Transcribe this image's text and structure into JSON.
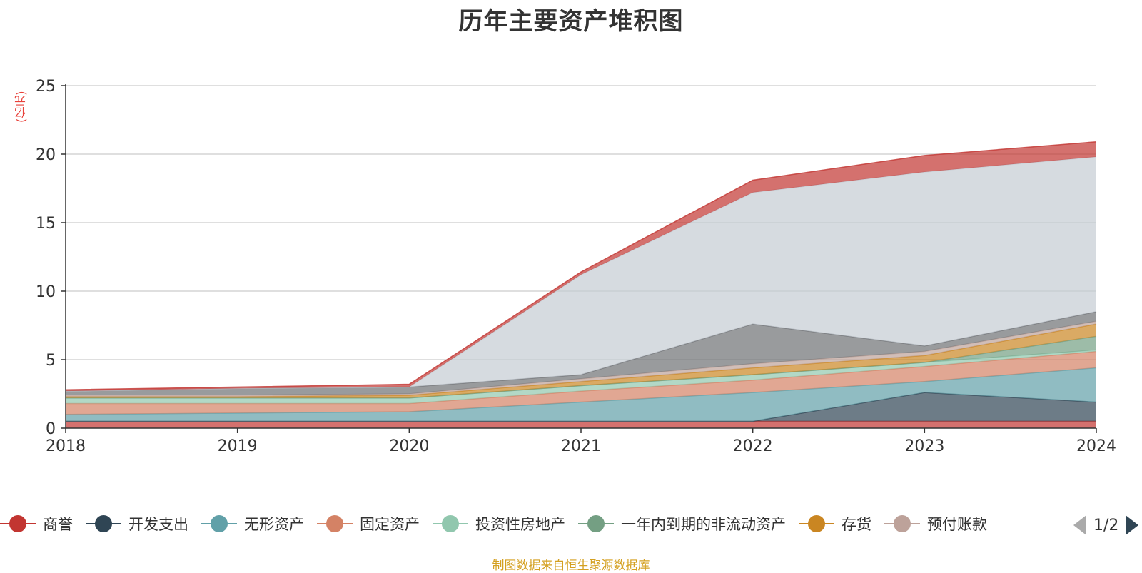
{
  "title": "历年主要资产堆积图",
  "source": "制图数据来自恒生聚源数据库",
  "pager": {
    "text": "1/2",
    "prev_icon": "triangle-left-icon",
    "next_icon": "triangle-right-icon"
  },
  "chart_data": {
    "type": "area",
    "stacked": true,
    "title": "历年主要资产堆积图",
    "unit_label": "(亿元)",
    "x": [
      "2018",
      "2019",
      "2020",
      "2021",
      "2022",
      "2023",
      "2024"
    ],
    "y_ticks": [
      "0",
      "5",
      "10",
      "15",
      "20",
      "25"
    ],
    "ylim": [
      0,
      25
    ],
    "grid": true,
    "legend_position": "bottom",
    "series": [
      {
        "name": "商誉",
        "color": "#c23531",
        "legend_color": "#c23531",
        "values": [
          0.5,
          0.5,
          0.5,
          0.5,
          0.5,
          0.5,
          0.5
        ]
      },
      {
        "name": "开发支出",
        "color": "#2f4554",
        "legend_color": "#2f4554",
        "values": [
          0,
          0,
          0,
          0,
          0,
          2.1,
          1.4
        ]
      },
      {
        "name": "无形资产",
        "color": "#61a0a8",
        "legend_color": "#61a0a8",
        "values": [
          0.5,
          0.6,
          0.7,
          1.4,
          2.1,
          0.8,
          2.5
        ]
      },
      {
        "name": "固定资产",
        "color": "#d48265",
        "legend_color": "#d48265",
        "values": [
          0.8,
          0.7,
          0.6,
          0.8,
          0.9,
          1.1,
          1.2
        ]
      },
      {
        "name": "投资性房地产",
        "color": "#91c7ae",
        "legend_color": "#91c7ae",
        "values": [
          0.4,
          0.4,
          0.4,
          0.4,
          0.4,
          0.3,
          0.1
        ]
      },
      {
        "name": "一年内到期的非流动资产",
        "color": "#749f83",
        "legend_color": "#749f83",
        "values": [
          0,
          0,
          0,
          0,
          0,
          0,
          1.0
        ]
      },
      {
        "name": "存货",
        "color": "#ca8622",
        "legend_color": "#ca8622",
        "values": [
          0.1,
          0.1,
          0.2,
          0.3,
          0.5,
          0.5,
          0.9
        ]
      },
      {
        "name": "预付账款",
        "color": "#bda29a",
        "legend_color": "#bda29a",
        "values": [
          0.1,
          0.1,
          0.1,
          0.2,
          0.3,
          0.3,
          0.2
        ]
      },
      {
        "name": "",
        "color": "#6e7074",
        "values": [
          0.3,
          0.5,
          0.5,
          0.3,
          2.9,
          0.4,
          0.7
        ]
      },
      {
        "name": "",
        "color": "#c4ccd3",
        "values": [
          0,
          0,
          0,
          7.3,
          9.6,
          12.7,
          11.3
        ]
      },
      {
        "name": "",
        "color": "#c23531",
        "values": [
          0.1,
          0.1,
          0.2,
          0.2,
          0.9,
          1.2,
          1.1
        ]
      }
    ]
  }
}
